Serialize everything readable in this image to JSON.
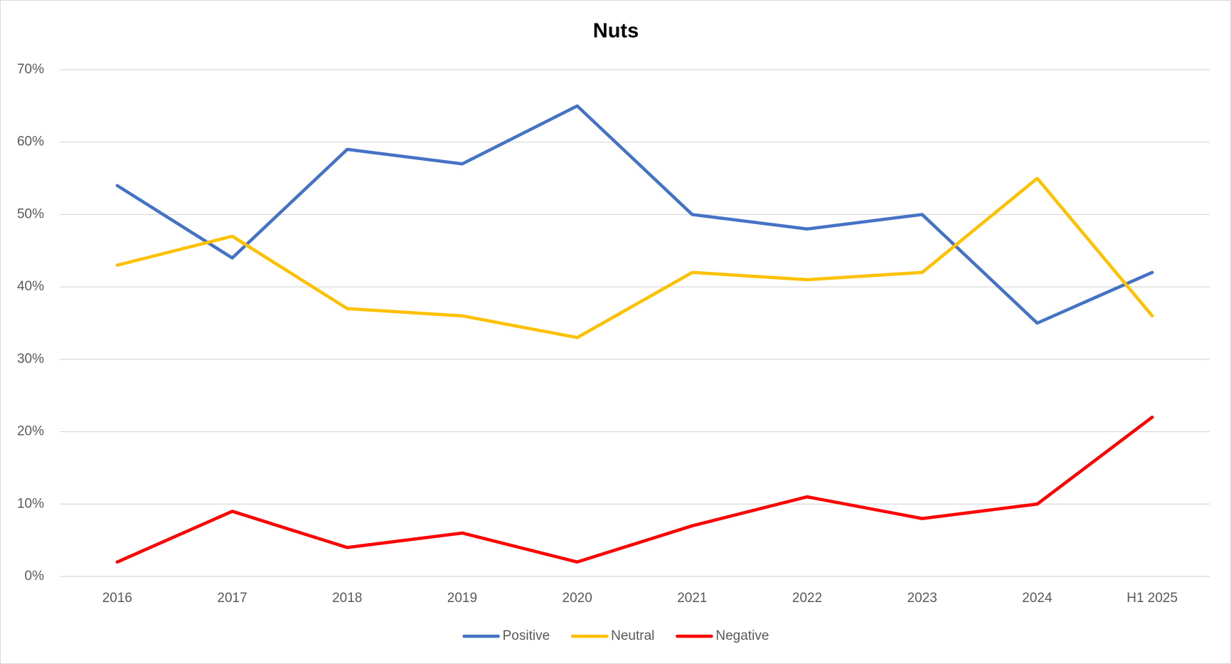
{
  "chart_data": {
    "type": "line",
    "title": "Nuts",
    "categories": [
      "2016",
      "2017",
      "2018",
      "2019",
      "2020",
      "2021",
      "2022",
      "2023",
      "2024",
      "H1 2025"
    ],
    "series": [
      {
        "name": "Positive",
        "color": "#4472c4",
        "values": [
          54,
          44,
          59,
          57,
          65,
          50,
          48,
          50,
          35,
          42
        ]
      },
      {
        "name": "Neutral",
        "color": "#ffc000",
        "values": [
          43,
          47,
          37,
          36,
          33,
          42,
          41,
          42,
          55,
          36
        ]
      },
      {
        "name": "Negative",
        "color": "#ff0000",
        "values": [
          2,
          9,
          4,
          6,
          2,
          7,
          11,
          8,
          10,
          22
        ]
      }
    ],
    "ylim": [
      0,
      70
    ],
    "yticks": [
      {
        "value": 0,
        "label": "0%"
      },
      {
        "value": 10,
        "label": "10%"
      },
      {
        "value": 20,
        "label": "20%"
      },
      {
        "value": 30,
        "label": "30%"
      },
      {
        "value": 40,
        "label": "40%"
      },
      {
        "value": 50,
        "label": "50%"
      },
      {
        "value": 60,
        "label": "60%"
      },
      {
        "value": 70,
        "label": "70%"
      }
    ],
    "grid": true,
    "legend": "bottom"
  }
}
